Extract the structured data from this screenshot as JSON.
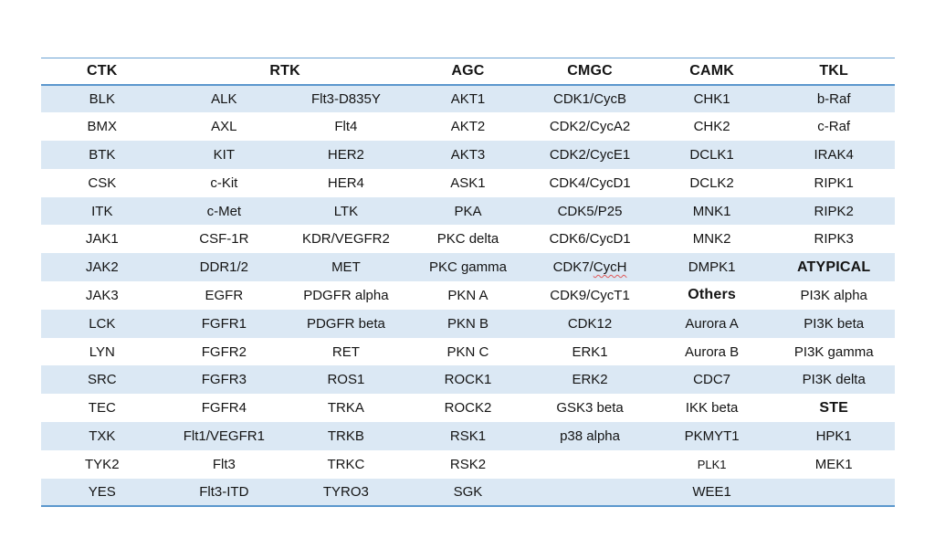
{
  "page": {
    "background_color": "#ffffff"
  },
  "table": {
    "accent_rule_color": "#5b97cd",
    "stripe_color": "#dbe8f4",
    "spellcheck_underline_color": "#e05a5a",
    "headers": [
      {
        "label": "CTK",
        "colspan": 1
      },
      {
        "label": "RTK",
        "colspan": 2
      },
      {
        "label": "AGC",
        "colspan": 1
      },
      {
        "label": "CMGC",
        "colspan": 1
      },
      {
        "label": "CAMK",
        "colspan": 1
      },
      {
        "label": "TKL",
        "colspan": 1
      }
    ],
    "rows": [
      [
        "BLK",
        "ALK",
        "Flt3-D835Y",
        "AKT1",
        "CDK1/CycB",
        "CHK1",
        "b-Raf"
      ],
      [
        "BMX",
        "AXL",
        "Flt4",
        "AKT2",
        "CDK2/CycA2",
        "CHK2",
        "c-Raf"
      ],
      [
        "BTK",
        "KIT",
        "HER2",
        "AKT3",
        "CDK2/CycE1",
        "DCLK1",
        "IRAK4"
      ],
      [
        "CSK",
        "c-Kit",
        "HER4",
        "ASK1",
        "CDK4/CycD1",
        "DCLK2",
        "RIPK1"
      ],
      [
        "ITK",
        "c-Met",
        "LTK",
        "PKA",
        "CDK5/P25",
        "MNK1",
        "RIPK2"
      ],
      [
        "JAK1",
        "CSF-1R",
        "KDR/VEGFR2",
        "PKC delta",
        "CDK6/CycD1",
        "MNK2",
        "RIPK3"
      ],
      [
        "JAK2",
        "DDR1/2",
        "MET",
        "PKC gamma",
        "CDK7/CycH",
        "DMPK1",
        "ATYPICAL"
      ],
      [
        "JAK3",
        "EGFR",
        "PDGFR alpha",
        "PKN A",
        "CDK9/CycT1",
        "Others",
        "PI3K alpha"
      ],
      [
        "LCK",
        "FGFR1",
        "PDGFR beta",
        "PKN B",
        "CDK12",
        "Aurora A",
        "PI3K beta"
      ],
      [
        "LYN",
        "FGFR2",
        "RET",
        "PKN C",
        "ERK1",
        "Aurora B",
        "PI3K gamma"
      ],
      [
        "SRC",
        "FGFR3",
        "ROS1",
        "ROCK1",
        "ERK2",
        "CDC7",
        "PI3K delta"
      ],
      [
        "TEC",
        "FGFR4",
        "TRKA",
        "ROCK2",
        "GSK3 beta",
        "IKK beta",
        "STE"
      ],
      [
        "TXK",
        "Flt1/VEGFR1",
        "TRKB",
        "RSK1",
        "p38 alpha",
        "PKMYT1",
        "HPK1"
      ],
      [
        "TYK2",
        "Flt3",
        "TRKC",
        "RSK2",
        "",
        "PLK1",
        "MEK1"
      ],
      [
        "YES",
        "Flt3-ITD",
        "TYRO3",
        "SGK",
        "",
        "WEE1",
        ""
      ]
    ],
    "bold_cells": [
      "ATYPICAL",
      "Others",
      "STE"
    ],
    "small_cells": [
      "PLK1"
    ],
    "spellcheck_cell": {
      "row": 6,
      "col": 4,
      "prefix": "CDK7/",
      "wavy": "CycH"
    }
  }
}
